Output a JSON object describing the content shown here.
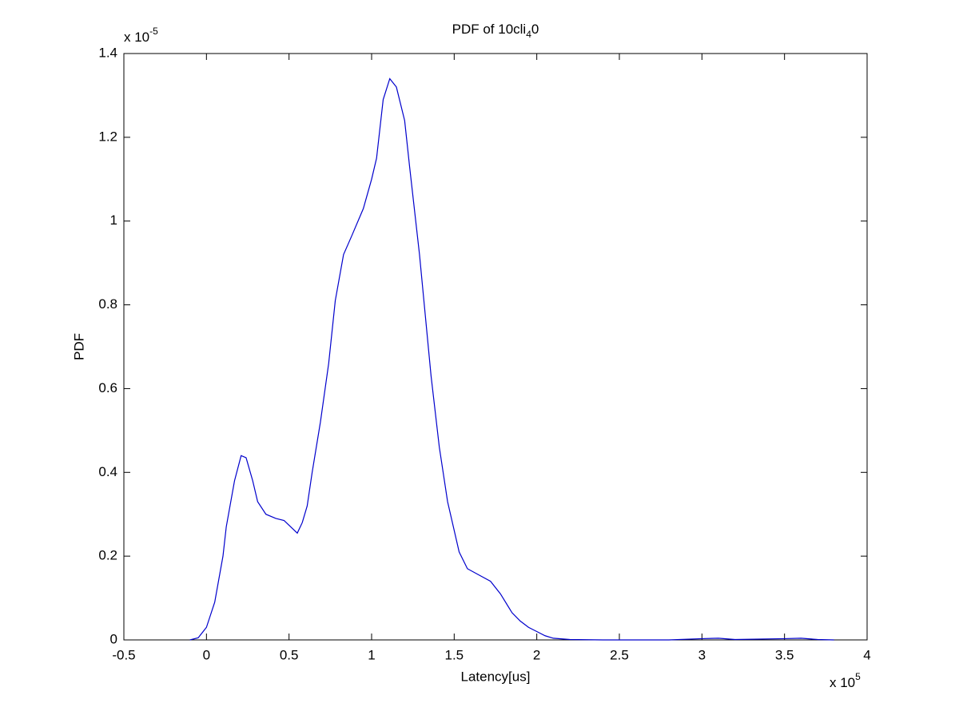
{
  "chart_data": {
    "type": "line",
    "title_parts": [
      "PDF of 10cli",
      "4",
      "0"
    ],
    "x_label": "Latency[us]",
    "y_label": "PDF",
    "x_multiplier": {
      "base": "x 10",
      "exponent": "5"
    },
    "y_multiplier": {
      "base": "x 10",
      "exponent": "-5"
    },
    "xlim": [
      -0.5,
      4
    ],
    "ylim": [
      0,
      1.4
    ],
    "xticks": [
      -0.5,
      0,
      0.5,
      1,
      1.5,
      2,
      2.5,
      3,
      3.5,
      4
    ],
    "yticks": [
      0,
      0.2,
      0.4,
      0.6,
      0.8,
      1,
      1.2,
      1.4
    ],
    "grid": false,
    "series": [
      {
        "color": "#0000cc",
        "x": [
          -0.1,
          -0.05,
          0,
          0.05,
          0.1,
          0.12,
          0.17,
          0.21,
          0.24,
          0.28,
          0.31,
          0.36,
          0.42,
          0.47,
          0.51,
          0.55,
          0.58,
          0.61,
          0.64,
          0.69,
          0.74,
          0.78,
          0.83,
          0.88,
          0.95,
          1.0,
          1.03,
          1.07,
          1.11,
          1.15,
          1.2,
          1.23,
          1.29,
          1.36,
          1.41,
          1.46,
          1.53,
          1.58,
          1.65,
          1.72,
          1.78,
          1.85,
          1.9,
          1.95,
          2.0,
          2.05,
          2.1,
          2.2,
          2.4,
          2.8,
          3.0,
          3.1,
          3.2,
          3.5,
          3.6,
          3.7,
          3.8
        ],
        "values": [
          0,
          0.005,
          0.03,
          0.09,
          0.2,
          0.27,
          0.38,
          0.44,
          0.435,
          0.38,
          0.33,
          0.3,
          0.29,
          0.285,
          0.27,
          0.255,
          0.28,
          0.32,
          0.4,
          0.52,
          0.66,
          0.81,
          0.92,
          0.965,
          1.03,
          1.1,
          1.15,
          1.29,
          1.34,
          1.32,
          1.24,
          1.13,
          0.92,
          0.63,
          0.46,
          0.33,
          0.21,
          0.17,
          0.155,
          0.14,
          0.11,
          0.065,
          0.045,
          0.03,
          0.02,
          0.01,
          0.004,
          0.001,
          0,
          0,
          0.003,
          0.004,
          0.001,
          0.003,
          0.004,
          0.001,
          0
        ]
      }
    ]
  }
}
